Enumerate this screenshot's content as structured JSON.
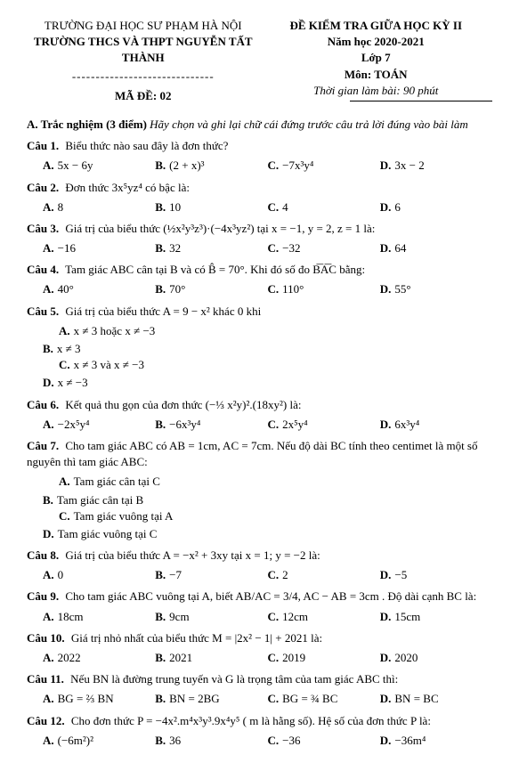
{
  "header": {
    "uni": "TRƯỜNG ĐẠI HỌC SƯ PHẠM HÀ NỘI",
    "school": "TRƯỜNG THCS VÀ THPT NGUYỄN TẤT THÀNH",
    "dash": "------------------------------",
    "code": "MÃ ĐỀ: 02",
    "exam": "ĐỀ KIỂM TRA GIỮA HỌC KỲ II",
    "year": "Năm học 2020-2021",
    "grade": "Lớp 7",
    "subject": "Môn: TOÁN",
    "time": "Thời gian làm bài: 90 phút"
  },
  "sectionA": {
    "label": "A. Trắc nghiệm (3 điểm)",
    "instr": "Hãy chọn và ghi lại chữ cái đứng trước câu trả lời đúng vào bài làm"
  },
  "q1": {
    "text": "Biểu thức nào sau đây là đơn thức?",
    "A": "5x − 6y",
    "B": "(2 + x)³",
    "C": "−7x³y⁴",
    "D": "3x − 2"
  },
  "q2": {
    "text": "Đơn thức 3x⁵yz⁴ có bậc là:",
    "A": "8",
    "B": "10",
    "C": "4",
    "D": "6"
  },
  "q3": {
    "text": "Giá trị của biểu thức (½x²y³z³)·(−4x³yz²) tại x = −1, y = 2, z = 1 là:",
    "A": "−16",
    "B": "32",
    "C": "−32",
    "D": "64"
  },
  "q4": {
    "text": "Tam giác ABC cân tại B và có B̂ = 70°. Khi đó số đo B͞A͞C bằng:",
    "A": "40°",
    "B": "70°",
    "C": "110°",
    "D": "55°"
  },
  "q5": {
    "text": "Giá trị của biểu thức A = 9 − x² khác 0 khi",
    "A": "x ≠ 3 hoặc x ≠ −3",
    "B": "x ≠ 3",
    "C": "x ≠ 3 và x ≠ −3",
    "D": "x ≠ −3"
  },
  "q6": {
    "text": "Kết quả thu gọn của đơn thức (−⅓ x²y)².(18xy²) là:",
    "A": "−2x⁵y⁴",
    "B": "−6x³y⁴",
    "C": "2x⁵y⁴",
    "D": "6x³y⁴"
  },
  "q7": {
    "text": "Cho tam giác ABC có AB = 1cm, AC = 7cm. Nếu độ dài BC tính theo centimet là một số nguyên thì tam giác ABC:",
    "A": "Tam giác cân tại C",
    "B": "Tam giác cân tại B",
    "C": "Tam giác vuông tại A",
    "D": "Tam giác vuông tại C"
  },
  "q8": {
    "text": "Giá trị của biểu thức A = −x² + 3xy tại x = 1; y = −2 là:",
    "A": "0",
    "B": "−7",
    "C": "2",
    "D": "−5"
  },
  "q9": {
    "text": "Cho tam giác ABC vuông tại A, biết AB/AC = 3/4, AC − AB = 3cm . Độ dài cạnh BC là:",
    "A": "18cm",
    "B": "9cm",
    "C": "12cm",
    "D": "15cm"
  },
  "q10": {
    "text": "Giá trị nhỏ nhất của biểu thức M = |2x² − 1| + 2021 là:",
    "A": "2022",
    "B": "2021",
    "C": "2019",
    "D": "2020"
  },
  "q11": {
    "text": "Nếu BN là đường trung tuyến và G là trọng tâm của tam giác ABC thì:",
    "A": "BG = ⅔ BN",
    "B": "BN = 2BG",
    "C": "BG = ¾ BC",
    "D": "BN = BC"
  },
  "q12": {
    "text": "Cho đơn thức P = −4x².m⁴x³y³.9x⁴y⁵ ( m là hằng số). Hệ số của đơn thức P là:",
    "A": "(−6m²)²",
    "B": "36",
    "C": "−36",
    "D": "−36m⁴"
  },
  "labels": {
    "c1": "Câu 1.",
    "c2": "Câu 2.",
    "c3": "Câu 3.",
    "c4": "Câu 4.",
    "c5": "Câu 5.",
    "c6": "Câu 6.",
    "c7": "Câu 7.",
    "c8": "Câu 8.",
    "c9": "Câu 9.",
    "c10": "Câu 10.",
    "c11": "Câu 11.",
    "c12": "Câu 12.",
    "A": "A.",
    "B": "B.",
    "C": "C.",
    "D": "D."
  }
}
